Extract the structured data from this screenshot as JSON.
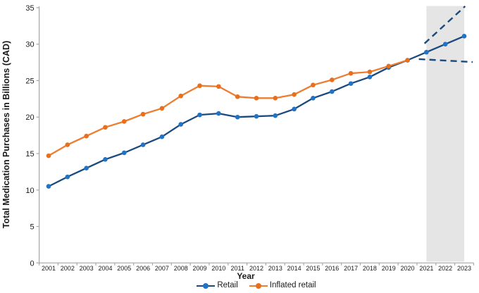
{
  "chart_data": {
    "type": "line",
    "title": "",
    "xlabel": "Year",
    "ylabel": "Total Medication Purchases in Billions (CAD)",
    "x": [
      2001,
      2002,
      2003,
      2004,
      2005,
      2006,
      2007,
      2008,
      2009,
      2010,
      2011,
      2012,
      2013,
      2014,
      2015,
      2016,
      2017,
      2018,
      2019,
      2020,
      2021,
      2022,
      2023
    ],
    "ylim": [
      0,
      35
    ],
    "ytick_interval": 5,
    "grid": false,
    "legend_position": "bottom-center",
    "series": [
      {
        "name": "Retail",
        "line_color": "#1b4a7e",
        "marker_color": "#2173c5",
        "values": [
          10.5,
          11.8,
          13.0,
          14.2,
          15.1,
          16.2,
          17.3,
          19.0,
          20.3,
          20.5,
          20.0,
          20.1,
          20.2,
          21.1,
          22.6,
          23.5,
          24.6,
          25.5,
          26.8,
          27.8,
          28.9,
          30.0,
          31.1
        ]
      },
      {
        "name": "Inflated retail",
        "line_color": "#ed7d31",
        "marker_color": "#e8701d",
        "values": [
          14.7,
          16.2,
          17.4,
          18.6,
          19.4,
          20.4,
          21.2,
          22.9,
          24.3,
          24.2,
          22.8,
          22.6,
          22.6,
          23.1,
          24.4,
          25.1,
          26.0,
          26.2,
          27.0,
          27.8
        ]
      }
    ],
    "projection": {
      "band_years": [
        2021,
        2023
      ],
      "band_color": "#e5e5e5",
      "upper_dashed": {
        "x": [
          2020.9,
          2023.05
        ],
        "y": [
          30.1,
          35.2
        ]
      },
      "lower_dashed": {
        "x": [
          2020.6,
          2023.45
        ],
        "y": [
          27.95,
          27.55
        ]
      },
      "dash_color": "#1b4a7e"
    },
    "axis_color": "#a6a6a6"
  }
}
